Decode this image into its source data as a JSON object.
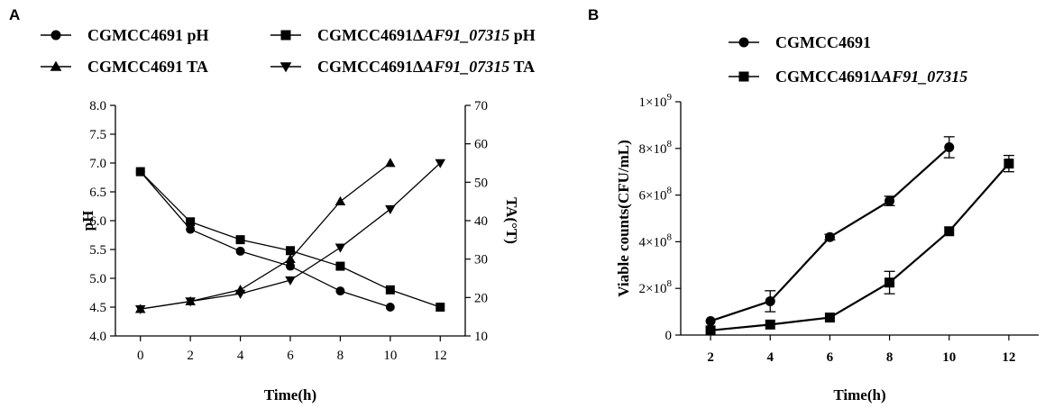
{
  "panels": {
    "a_letter": "A",
    "b_letter": "B"
  },
  "chart_data": [
    {
      "type": "line",
      "panel": "A",
      "title": "",
      "xlabel": "Time(h)",
      "ylabel": "pH",
      "y2label": "TA(°T)",
      "xlim": [
        -1,
        13
      ],
      "ylim": [
        4.0,
        8.0
      ],
      "y2lim": [
        10,
        70
      ],
      "xticks": [
        0,
        2,
        4,
        6,
        8,
        10,
        12
      ],
      "yticks": [
        4.0,
        4.5,
        5.0,
        5.5,
        6.0,
        6.5,
        7.0,
        7.5,
        8.0
      ],
      "ytick_labels": [
        "4.0",
        "4.5",
        "5.0",
        "5.5",
        "6.0",
        "6.5",
        "7.0",
        "7.5",
        "8.0"
      ],
      "y2ticks": [
        10,
        20,
        30,
        40,
        50,
        60,
        70
      ],
      "grid": false,
      "legend_position": "top",
      "series": [
        {
          "name": "CGMCC4691 pH",
          "name_prefix": "CGMCC4691 pH",
          "name_italic": "",
          "name_suffix": "",
          "axis": "left",
          "marker": "circle",
          "x": [
            0,
            2,
            4,
            6,
            8,
            10
          ],
          "values": [
            6.85,
            5.85,
            5.47,
            5.21,
            4.78,
            4.5
          ]
        },
        {
          "name": "CGMCC4691ΔAF91_07315 pH",
          "name_prefix": "CGMCC4691Δ",
          "name_italic": "AF91_07315",
          "name_suffix": " pH",
          "axis": "left",
          "marker": "square",
          "x": [
            0,
            2,
            4,
            6,
            8,
            10,
            12
          ],
          "values": [
            6.85,
            5.98,
            5.67,
            5.48,
            5.21,
            4.8,
            4.5
          ]
        },
        {
          "name": "CGMCC4691 TA",
          "name_prefix": "CGMCC4691 TA",
          "name_italic": "",
          "name_suffix": "",
          "axis": "right",
          "marker": "triangle-up",
          "x": [
            0,
            2,
            4,
            6,
            8,
            10
          ],
          "values": [
            17,
            19,
            22,
            30,
            45,
            55
          ]
        },
        {
          "name": "CGMCC4691ΔAF91_07315 TA",
          "name_prefix": "CGMCC4691Δ",
          "name_italic": "AF91_07315",
          "name_suffix": " TA",
          "axis": "right",
          "marker": "triangle-down",
          "x": [
            0,
            2,
            4,
            6,
            8,
            10,
            12
          ],
          "values": [
            17,
            19,
            21,
            24.5,
            33,
            43,
            55
          ]
        }
      ]
    },
    {
      "type": "line",
      "panel": "B",
      "title": "",
      "xlabel": "Time(h)",
      "ylabel": "Viable counts(CFU/mL)",
      "xlim": [
        1,
        13
      ],
      "ylim": [
        0,
        1000000000
      ],
      "xticks": [
        2,
        4,
        6,
        8,
        10,
        12
      ],
      "yticks": [
        0,
        200000000,
        400000000,
        600000000,
        800000000,
        1000000000
      ],
      "ytick_labels": [
        {
          "mant": "0",
          "exp": ""
        },
        {
          "mant": "2×10",
          "exp": "8"
        },
        {
          "mant": "4×10",
          "exp": "8"
        },
        {
          "mant": "6×10",
          "exp": "8"
        },
        {
          "mant": "8×10",
          "exp": "8"
        },
        {
          "mant": "1×10",
          "exp": "9"
        }
      ],
      "grid": false,
      "legend_position": "top",
      "series": [
        {
          "name": "CGMCC4691",
          "name_prefix": "CGMCC4691",
          "name_italic": "",
          "name_suffix": "",
          "marker": "circle",
          "x": [
            2,
            4,
            6,
            8,
            10
          ],
          "values": [
            60000000,
            145000000,
            420000000,
            575000000,
            805000000
          ],
          "errors": [
            0,
            45000000,
            12000000,
            20000000,
            45000000
          ]
        },
        {
          "name": "CGMCC4691ΔAF91_07315",
          "name_prefix": "CGMCC4691Δ",
          "name_italic": "AF91_07315",
          "name_suffix": "",
          "marker": "square",
          "x": [
            2,
            4,
            6,
            8,
            10,
            12
          ],
          "values": [
            20000000,
            45000000,
            75000000,
            225000000,
            445000000,
            735000000
          ],
          "errors": [
            0,
            0,
            0,
            48000000,
            0,
            35000000
          ]
        }
      ]
    }
  ]
}
